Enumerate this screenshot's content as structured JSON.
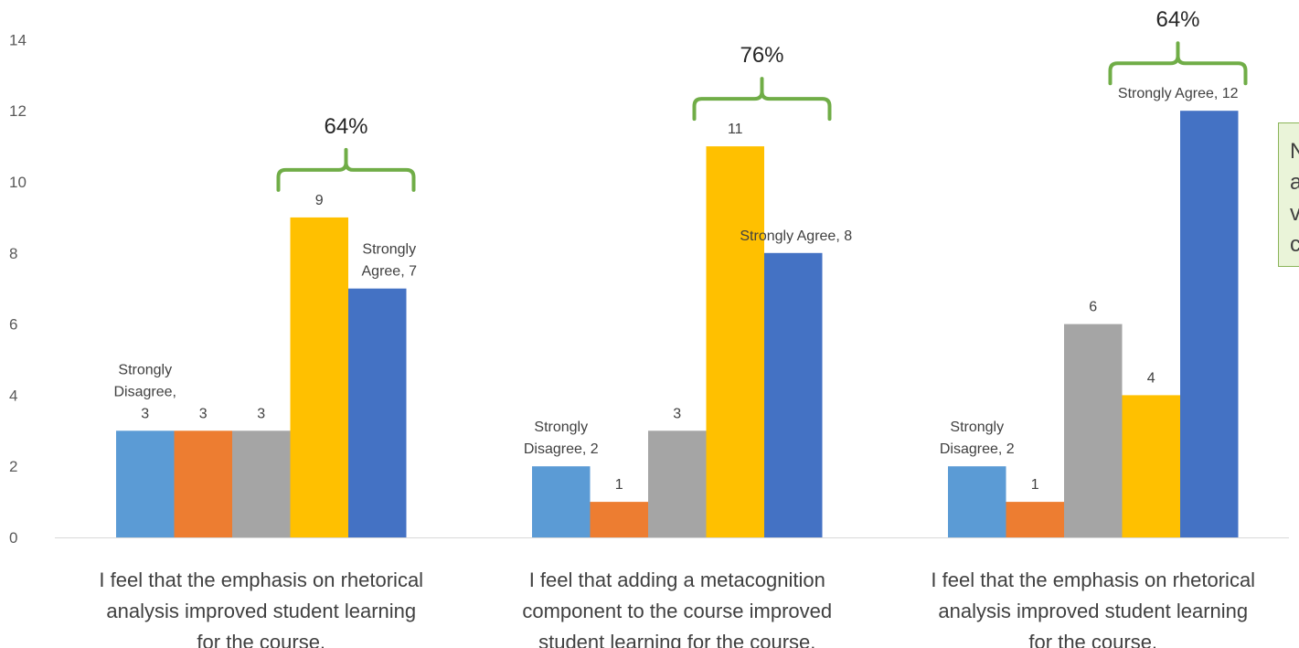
{
  "chart_data": {
    "type": "bar",
    "ylim": [
      0,
      14
    ],
    "yticks": [
      "0",
      "2",
      "4",
      "6",
      "8",
      "10",
      "12",
      "14"
    ],
    "categories": [
      [
        "I feel that the emphasis on rhetorical",
        "analysis improved student learning",
        "for the course."
      ],
      [
        "I feel that adding a metacognition",
        "component to the course improved",
        "student learning for the course."
      ],
      [
        "I feel that the emphasis on rhetorical",
        "analysis improved student  learning",
        "for the course."
      ]
    ],
    "series": [
      {
        "name": "Strongly Disagree",
        "color": "#5b9bd5",
        "values": [
          3,
          2,
          2
        ]
      },
      {
        "name": "",
        "color": "#ed7d31",
        "values": [
          3,
          1,
          1
        ]
      },
      {
        "name": "",
        "color": "#a5a5a5",
        "values": [
          3,
          3,
          6
        ]
      },
      {
        "name": "",
        "color": "#ffc000",
        "values": [
          9,
          11,
          4
        ]
      },
      {
        "name": "Strongly Agree",
        "color": "#4472c4",
        "values": [
          7,
          8,
          12
        ]
      }
    ],
    "data_labels": [
      [
        [
          "Strongly",
          "Disagree,",
          "3"
        ],
        [
          "3"
        ],
        [
          "3"
        ],
        [
          "9"
        ],
        [
          "Strongly",
          "Agree, 7"
        ]
      ],
      [
        [
          "Strongly",
          "Disagree, 2"
        ],
        [
          "1"
        ],
        [
          "3"
        ],
        [
          "11"
        ],
        [
          "Strongly Agree, 8"
        ]
      ],
      [
        [
          "Strongly",
          "Disagree, 2"
        ],
        [
          "1"
        ],
        [
          "6"
        ],
        [
          "4"
        ],
        [
          "Strongly Agree, 12"
        ]
      ]
    ],
    "annotations": [
      {
        "text": "64%",
        "group": 0,
        "from_series": 3,
        "to_series": 4
      },
      {
        "text": "76%",
        "group": 1,
        "from_series": 3,
        "to_series": 4
      },
      {
        "text": "64%",
        "group": 2,
        "from_series": 3,
        "to_series": 4
      }
    ],
    "bracket_color": "#70ad47",
    "grid": false
  },
  "callout": {
    "lines": [
      "N",
      "a",
      "v",
      "c"
    ]
  }
}
